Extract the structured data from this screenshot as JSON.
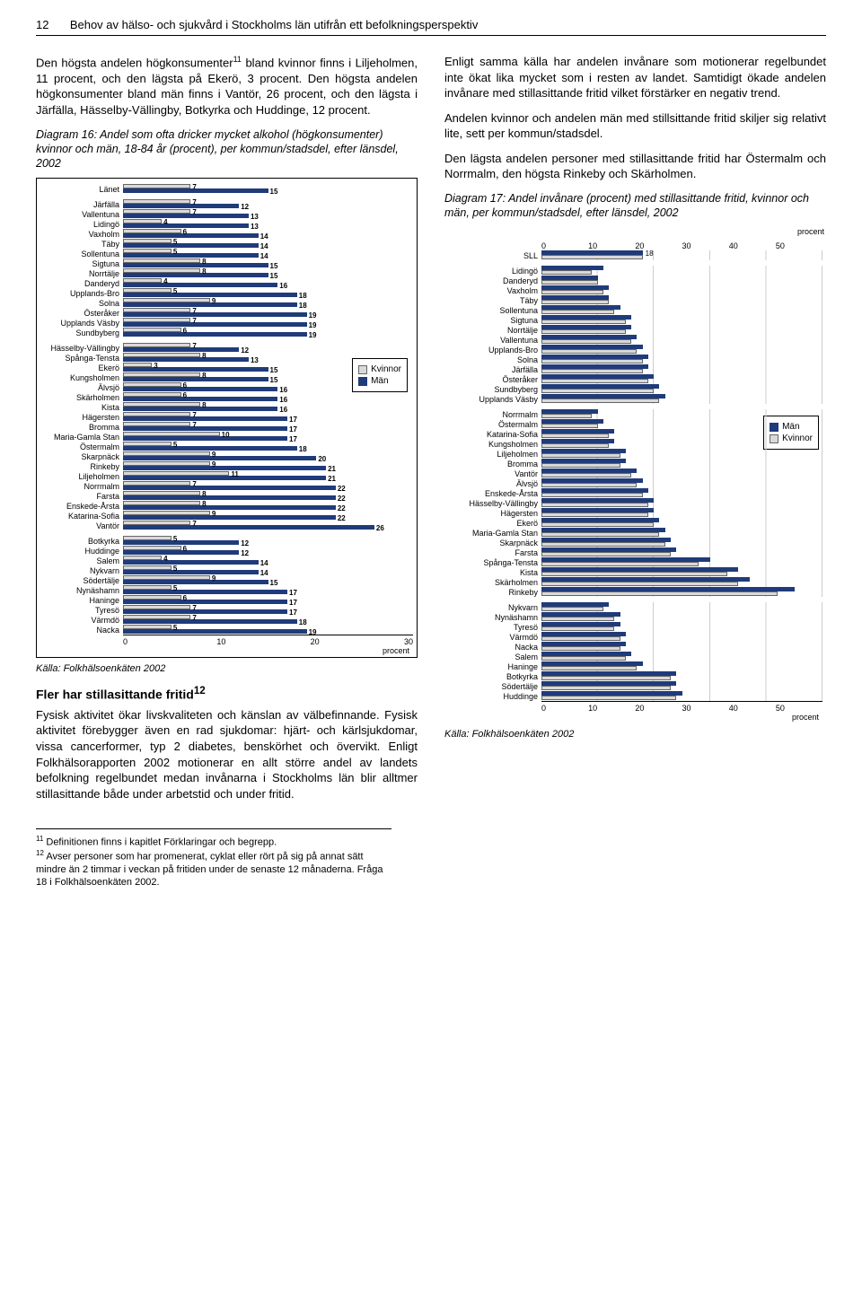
{
  "header": {
    "page": "12",
    "title": "Behov av hälso- och sjukvård i Stockholms län utifrån ett befolkningsperspektiv"
  },
  "left": {
    "p1": "Den högsta andelen högkonsumenter",
    "p1sup": "11",
    "p1b": " bland kvinnor finns i Liljeholmen, 11 procent, och den lägsta på Ekerö, 3 procent. Den högsta andelen högkonsumenter bland män finns i Vantör, 26 procent, och den lägsta i Järfälla, Hässelby-Vällingby, Botkyrka och Huddinge, 12 procent.",
    "caption16": "Diagram 16: Andel som ofta dricker mycket alkohol (högkonsumenter) kvinnor och män, 18-84 år (procent), per kommun/stadsdel, efter länsdel, 2002",
    "source": "Källa: Folkhälsoenkäten 2002",
    "subhead": "Fler har stillasittande fritid",
    "subsup": "12",
    "p2": "Fysisk aktivitet ökar livskvaliteten och känslan av välbefinnande. Fysisk aktivitet förebygger även en rad sjukdomar: hjärt- och kärlsjukdomar, vissa cancerformer, typ 2 diabetes, benskörhet och övervikt. Enligt Folkhälsorapporten 2002 motionerar en allt större andel av landets befolkning regelbundet medan invånarna i Stockholms län blir alltmer stillasittande både under arbetstid och under fritid."
  },
  "right": {
    "p1": "Enligt samma källa har andelen invånare som motionerar regelbundet inte ökat lika mycket som i resten av landet. Samtidigt ökade andelen invånare med stillasittande fritid vilket förstärker en negativ trend.",
    "p2": "Andelen kvinnor och andelen män med stillsittande fritid skiljer sig relativt lite, sett per kommun/stadsdel.",
    "p3": "Den lägsta andelen personer med stillasittande fritid har Östermalm och Norrmalm, den högsta Rinkeby och Skärholmen.",
    "caption17": "Diagram 17: Andel invånare (procent) med stillasittande fritid, kvinnor och män, per kommun/stadsdel, efter länsdel, 2002",
    "source": "Källa: Folkhälsoenkäten 2002"
  },
  "footnotes": {
    "f11": " Definitionen finns i kapitlet Förklaringar och begrepp.",
    "f12": " Avser personer som har promenerat, cyklat eller rört på sig på annat sätt mindre än 2 timmar i veckan på fritiden under de senaste 12 månaderna. Fråga 18 i Folkhälsoenkäten 2002."
  },
  "chart16": {
    "xmax": 30,
    "legend": {
      "k": "Kvinnor",
      "m": "Män"
    },
    "axis_label": "procent",
    "ticks": [
      "0",
      "10",
      "20",
      "30"
    ],
    "colors": {
      "f": "#d9d9d9",
      "m": "#1f3b7a"
    },
    "groups": [
      [
        {
          "l": "Länet",
          "f": 7,
          "m": 15
        }
      ],
      [
        {
          "l": "Järfälla",
          "f": 7,
          "m": 12
        },
        {
          "l": "Vallentuna",
          "f": 7,
          "m": 13
        },
        {
          "l": "Lidingö",
          "f": 4,
          "m": 13
        },
        {
          "l": "Vaxholm",
          "f": 6,
          "m": 14
        },
        {
          "l": "Täby",
          "f": 5,
          "m": 14
        },
        {
          "l": "Sollentuna",
          "f": 5,
          "m": 14
        },
        {
          "l": "Sigtuna",
          "f": 8,
          "m": 15
        },
        {
          "l": "Norrtälje",
          "f": 8,
          "m": 15
        },
        {
          "l": "Danderyd",
          "f": 4,
          "m": 16
        },
        {
          "l": "Upplands-Bro",
          "f": 5,
          "m": 18
        },
        {
          "l": "Solna",
          "f": 9,
          "m": 18
        },
        {
          "l": "Österåker",
          "f": 7,
          "m": 19
        },
        {
          "l": "Upplands Väsby",
          "f": 7,
          "m": 19
        },
        {
          "l": "Sundbyberg",
          "f": 6,
          "m": 19
        }
      ],
      [
        {
          "l": "Hässelby-Vällingby",
          "f": 7,
          "m": 12
        },
        {
          "l": "Spånga-Tensta",
          "f": 8,
          "m": 13
        },
        {
          "l": "Ekerö",
          "f": 3,
          "m": 15
        },
        {
          "l": "Kungsholmen",
          "f": 8,
          "m": 15
        },
        {
          "l": "Älvsjö",
          "f": 6,
          "m": 16
        },
        {
          "l": "Skärholmen",
          "f": 6,
          "m": 16
        },
        {
          "l": "Kista",
          "f": 8,
          "m": 16
        },
        {
          "l": "Hägersten",
          "f": 7,
          "m": 17
        },
        {
          "l": "Bromma",
          "f": 7,
          "m": 17
        },
        {
          "l": "Maria-Gamla Stan",
          "f": 10,
          "m": 17
        },
        {
          "l": "Östermalm",
          "f": 5,
          "m": 18
        },
        {
          "l": "Skarpnäck",
          "f": 9,
          "m": 20
        },
        {
          "l": "Rinkeby",
          "f": 9,
          "m": 21
        },
        {
          "l": "Liljeholmen",
          "f": 11,
          "m": 21
        },
        {
          "l": "Norrmalm",
          "f": 7,
          "m": 22
        },
        {
          "l": "Farsta",
          "f": 8,
          "m": 22
        },
        {
          "l": "Enskede-Årsta",
          "f": 8,
          "m": 22
        },
        {
          "l": "Katarina-Sofia",
          "f": 9,
          "m": 22
        },
        {
          "l": "Vantör",
          "f": 7,
          "m": 26
        }
      ],
      [
        {
          "l": "Botkyrka",
          "f": 5,
          "m": 12
        },
        {
          "l": "Huddinge",
          "f": 6,
          "m": 12
        },
        {
          "l": "Salem",
          "f": 4,
          "m": 14
        },
        {
          "l": "Nykvarn",
          "f": 5,
          "m": 14
        },
        {
          "l": "Södertälje",
          "f": 9,
          "m": 15
        },
        {
          "l": "Nynäshamn",
          "f": 5,
          "m": 17
        },
        {
          "l": "Haninge",
          "f": 6,
          "m": 17
        },
        {
          "l": "Tyresö",
          "f": 7,
          "m": 17
        },
        {
          "l": "Värmdö",
          "f": 7,
          "m": 18
        },
        {
          "l": "Nacka",
          "f": 5,
          "m": 19
        }
      ]
    ]
  },
  "chart17": {
    "xmax": 50,
    "ticks": [
      "0",
      "10",
      "20",
      "30",
      "40",
      "50"
    ],
    "pct_label": "procent",
    "legend": {
      "m": "Män",
      "k": "Kvinnor"
    },
    "colors": {
      "f": "#d9d9d9",
      "m": "#1f3b7a"
    },
    "sll_val": 18,
    "groups": [
      [
        {
          "l": "SLL",
          "m": 18,
          "f": 18
        }
      ],
      [
        {
          "l": "Lidingö",
          "m": 11,
          "f": 9
        },
        {
          "l": "Danderyd",
          "m": 10,
          "f": 10
        },
        {
          "l": "Vaxholm",
          "m": 12,
          "f": 11
        },
        {
          "l": "Täby",
          "m": 12,
          "f": 12
        },
        {
          "l": "Sollentuna",
          "m": 14,
          "f": 13
        },
        {
          "l": "Sigtuna",
          "m": 16,
          "f": 15
        },
        {
          "l": "Norrtälje",
          "m": 16,
          "f": 15
        },
        {
          "l": "Vallentuna",
          "m": 17,
          "f": 16
        },
        {
          "l": "Upplands-Bro",
          "m": 18,
          "f": 17
        },
        {
          "l": "Solna",
          "m": 19,
          "f": 18
        },
        {
          "l": "Järfälla",
          "m": 19,
          "f": 18
        },
        {
          "l": "Österåker",
          "m": 20,
          "f": 19
        },
        {
          "l": "Sundbyberg",
          "m": 21,
          "f": 20
        },
        {
          "l": "Upplands Väsby",
          "m": 22,
          "f": 21
        }
      ],
      [
        {
          "l": "Norrmalm",
          "m": 10,
          "f": 9
        },
        {
          "l": "Östermalm",
          "m": 11,
          "f": 10
        },
        {
          "l": "Katarina-Sofia",
          "m": 13,
          "f": 12
        },
        {
          "l": "Kungsholmen",
          "m": 13,
          "f": 12
        },
        {
          "l": "Liljeholmen",
          "m": 15,
          "f": 14
        },
        {
          "l": "Bromma",
          "m": 15,
          "f": 14
        },
        {
          "l": "Vantör",
          "m": 17,
          "f": 16
        },
        {
          "l": "Älvsjö",
          "m": 18,
          "f": 17
        },
        {
          "l": "Enskede-Årsta",
          "m": 19,
          "f": 18
        },
        {
          "l": "Hässelby-Vällingby",
          "m": 20,
          "f": 19
        },
        {
          "l": "Hägersten",
          "m": 20,
          "f": 19
        },
        {
          "l": "Ekerö",
          "m": 21,
          "f": 20
        },
        {
          "l": "Maria-Gamla Stan",
          "m": 22,
          "f": 21
        },
        {
          "l": "Skarpnäck",
          "m": 23,
          "f": 22
        },
        {
          "l": "Farsta",
          "m": 24,
          "f": 23
        },
        {
          "l": "Spånga-Tensta",
          "m": 30,
          "f": 28
        },
        {
          "l": "Kista",
          "m": 35,
          "f": 33
        },
        {
          "l": "Skärholmen",
          "m": 37,
          "f": 35
        },
        {
          "l": "Rinkeby",
          "m": 45,
          "f": 42
        }
      ],
      [
        {
          "l": "Nykvarn",
          "m": 12,
          "f": 11
        },
        {
          "l": "Nynäshamn",
          "m": 14,
          "f": 13
        },
        {
          "l": "Tyresö",
          "m": 14,
          "f": 13
        },
        {
          "l": "Värmdö",
          "m": 15,
          "f": 14
        },
        {
          "l": "Nacka",
          "m": 15,
          "f": 14
        },
        {
          "l": "Salem",
          "m": 16,
          "f": 15
        },
        {
          "l": "Haninge",
          "m": 18,
          "f": 17
        },
        {
          "l": "Botkyrka",
          "m": 24,
          "f": 23
        },
        {
          "l": "Södertälje",
          "m": 24,
          "f": 23
        },
        {
          "l": "Huddinge",
          "m": 25,
          "f": 24
        }
      ]
    ]
  }
}
